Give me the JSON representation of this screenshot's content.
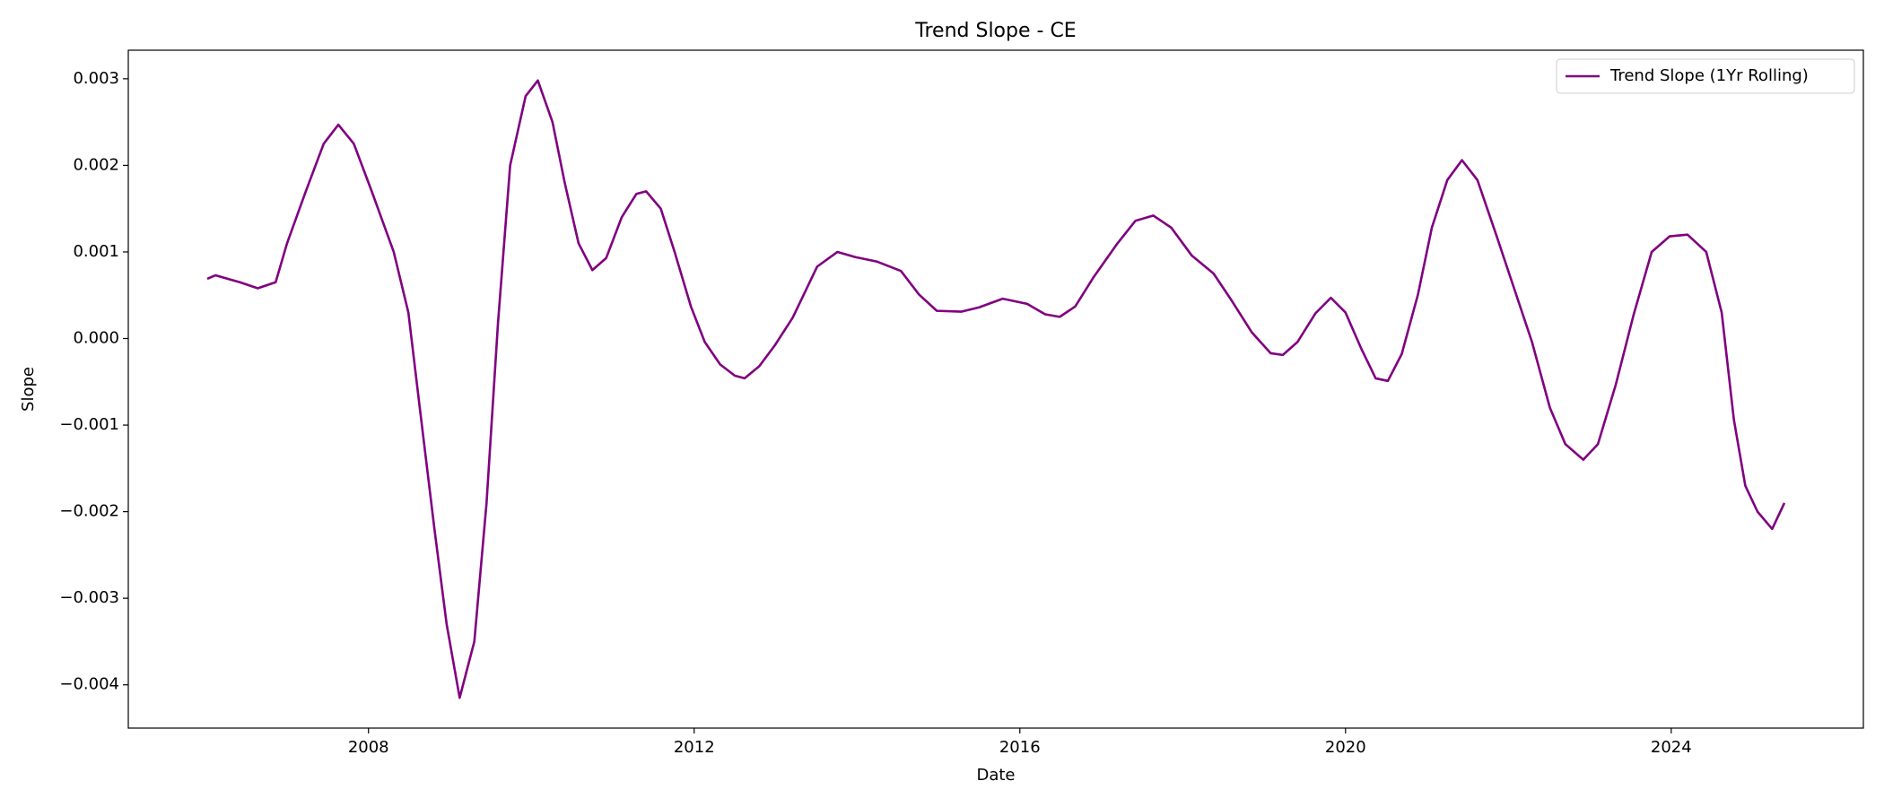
{
  "chart_data": {
    "type": "line",
    "title": "Trend Slope - CE",
    "x_label": "Date",
    "y_label": "Slope",
    "x": [
      2006.02,
      2006.12,
      2006.42,
      2006.64,
      2006.86,
      2007.0,
      2007.23,
      2007.45,
      2007.63,
      2007.82,
      2008.04,
      2008.31,
      2008.49,
      2008.63,
      2008.81,
      2008.96,
      2009.12,
      2009.3,
      2009.45,
      2009.59,
      2009.74,
      2009.93,
      2010.08,
      2010.26,
      2010.41,
      2010.58,
      2010.75,
      2010.92,
      2011.11,
      2011.29,
      2011.41,
      2011.59,
      2011.76,
      2011.96,
      2012.13,
      2012.32,
      2012.5,
      2012.62,
      2012.8,
      2012.99,
      2013.21,
      2013.51,
      2013.76,
      2013.98,
      2014.24,
      2014.54,
      2014.76,
      2014.98,
      2015.28,
      2015.5,
      2015.79,
      2016.09,
      2016.31,
      2016.49,
      2016.68,
      2016.9,
      2017.2,
      2017.42,
      2017.64,
      2017.86,
      2018.11,
      2018.38,
      2018.6,
      2018.85,
      2019.08,
      2019.23,
      2019.41,
      2019.63,
      2019.82,
      2020.0,
      2020.19,
      2020.37,
      2020.52,
      2020.69,
      2020.89,
      2021.06,
      2021.25,
      2021.43,
      2021.62,
      2021.85,
      2022.07,
      2022.29,
      2022.51,
      2022.7,
      2022.92,
      2023.1,
      2023.32,
      2023.54,
      2023.76,
      2023.98,
      2024.2,
      2024.43,
      2024.62,
      2024.77,
      2024.91,
      2025.06,
      2025.24,
      2025.39
    ],
    "series": [
      {
        "name": "Trend Slope (1Yr Rolling)",
        "color": "#800080",
        "values": [
          0.00069,
          0.00073,
          0.00065,
          0.00058,
          0.00065,
          0.0011,
          0.0017,
          0.00225,
          0.00247,
          0.00225,
          0.0017,
          0.001,
          0.0003,
          -0.0008,
          -0.0022,
          -0.0033,
          -0.00415,
          -0.0035,
          -0.0019,
          0.00017,
          0.002,
          0.0028,
          0.00298,
          0.0025,
          0.0018,
          0.0011,
          0.00079,
          0.00093,
          0.0014,
          0.00167,
          0.0017,
          0.0015,
          0.001,
          0.00037,
          -4e-05,
          -0.0003,
          -0.00043,
          -0.00046,
          -0.00032,
          -8e-05,
          0.00024,
          0.00083,
          0.001,
          0.00094,
          0.00089,
          0.00078,
          0.00051,
          0.00032,
          0.00031,
          0.00036,
          0.00046,
          0.0004,
          0.00028,
          0.00025,
          0.00037,
          0.0007,
          0.0011,
          0.00136,
          0.00142,
          0.00128,
          0.00096,
          0.00075,
          0.00044,
          7e-05,
          -0.00017,
          -0.00019,
          -4e-05,
          0.00029,
          0.00047,
          0.0003,
          -0.00011,
          -0.00046,
          -0.00049,
          -0.00018,
          0.00051,
          0.00128,
          0.00183,
          0.00206,
          0.00183,
          0.0012,
          0.00058,
          -4e-05,
          -0.0008,
          -0.00122,
          -0.0014,
          -0.00122,
          -0.00053,
          0.00028,
          0.001,
          0.00118,
          0.0012,
          0.001,
          0.0003,
          -0.00094,
          -0.0017,
          -0.002,
          -0.0022,
          -0.0019
        ]
      }
    ],
    "xlim": [
      2005.05,
      2026.36
    ],
    "xticks": [
      2008,
      2012,
      2016,
      2020,
      2024
    ],
    "ylim": [
      -0.0045,
      0.00333
    ],
    "yticks": [
      {
        "value": -0.004,
        "label": "−0.004"
      },
      {
        "value": -0.003,
        "label": "−0.003"
      },
      {
        "value": -0.002,
        "label": "−0.002"
      },
      {
        "value": -0.001,
        "label": "−0.001"
      },
      {
        "value": 0,
        "label": "0.000"
      },
      0.001,
      0.002,
      0.003
    ],
    "grid": false,
    "legend": "upper right"
  }
}
